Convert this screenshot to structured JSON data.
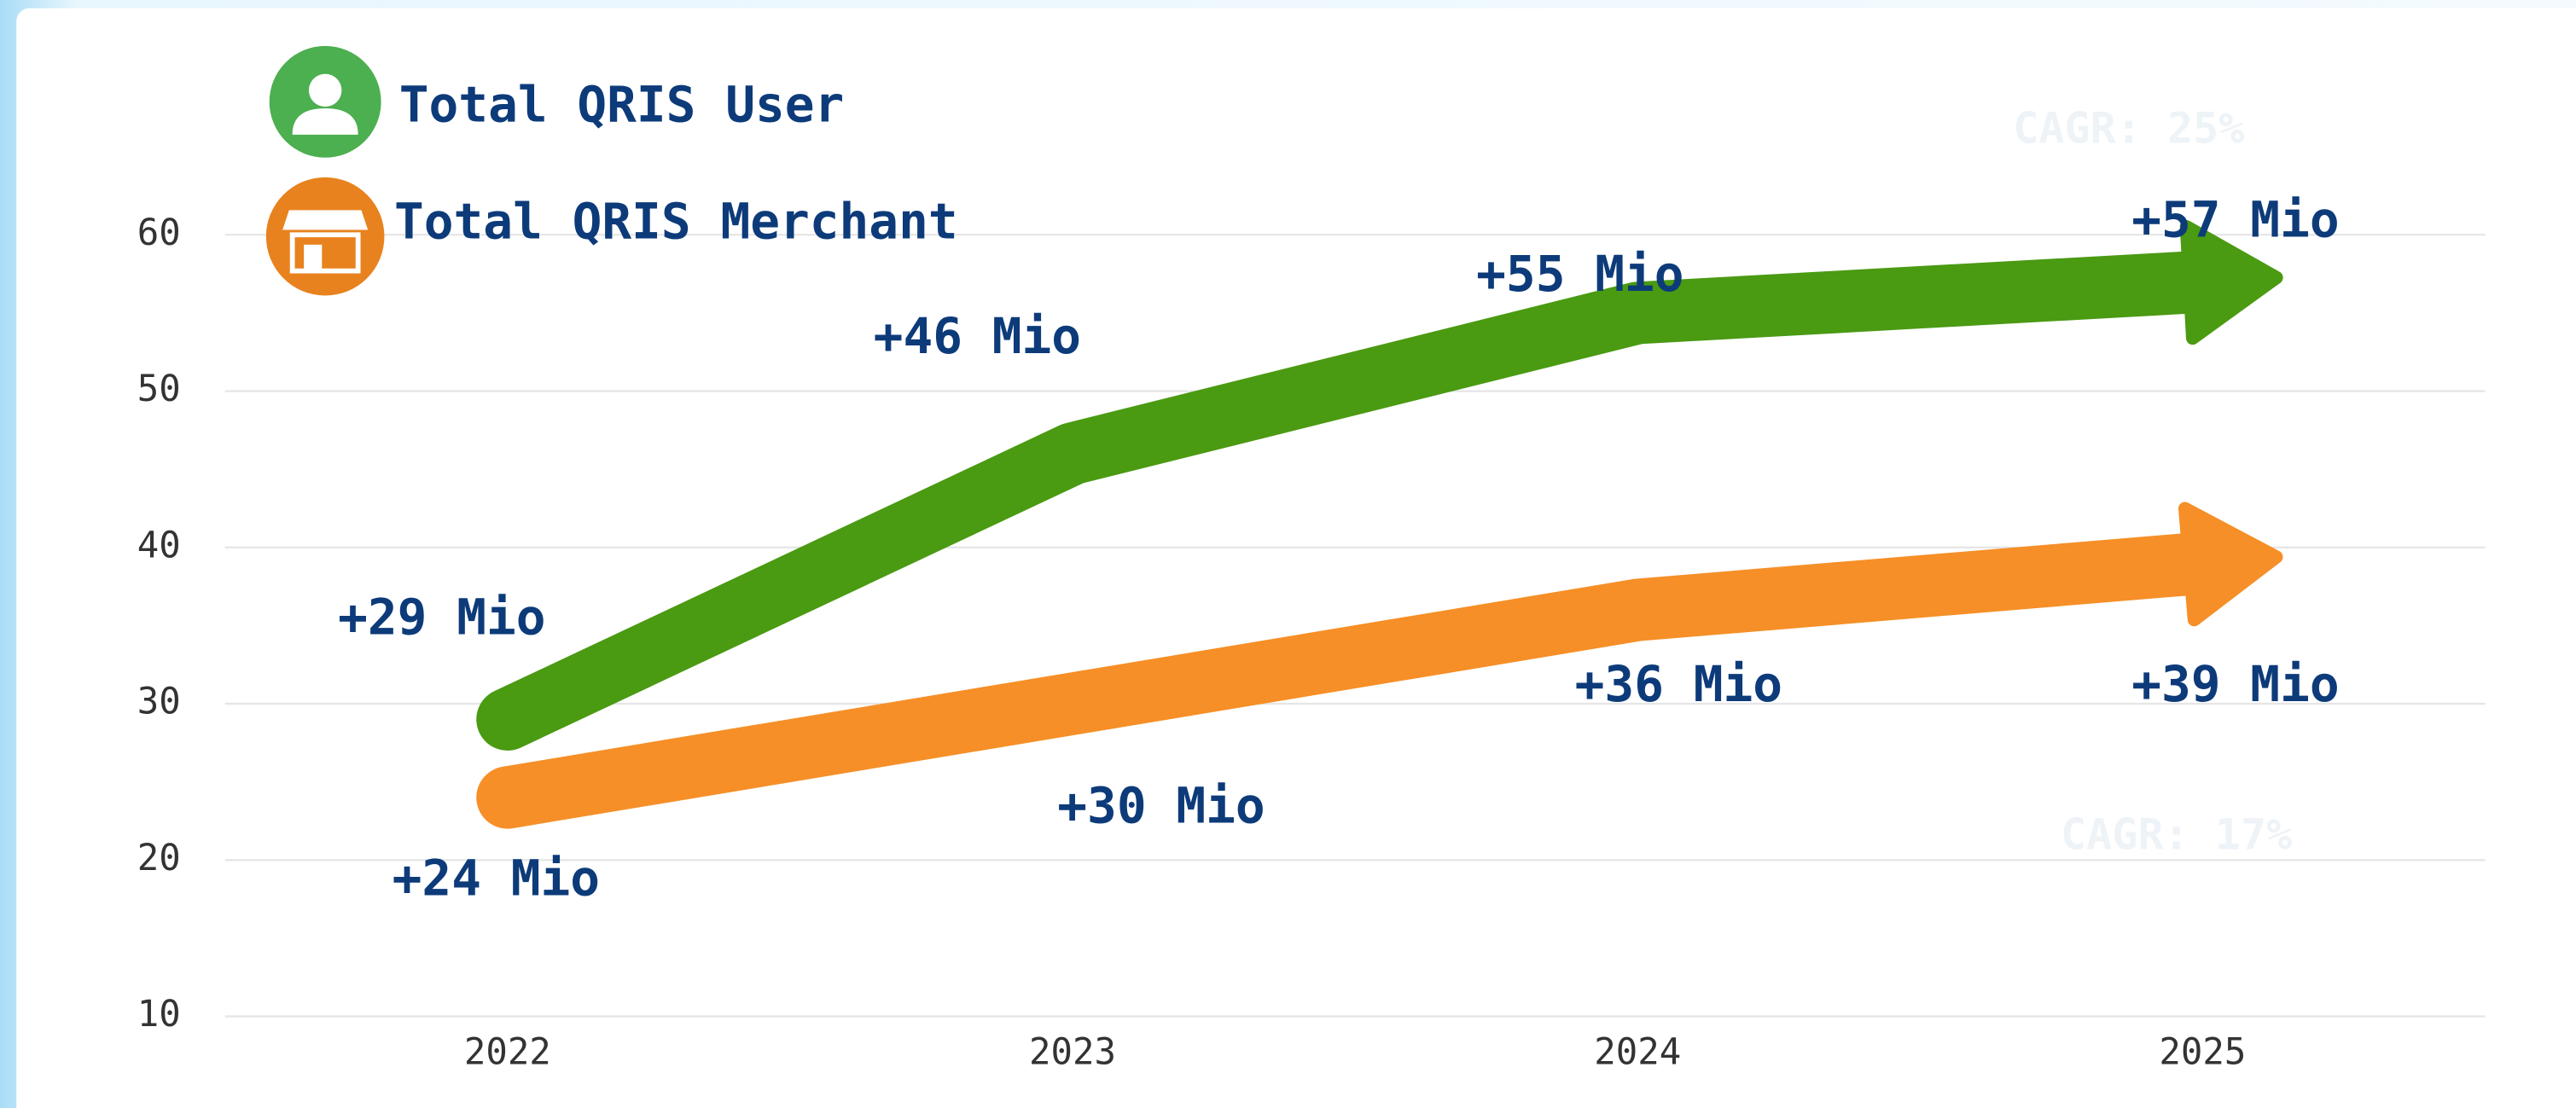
{
  "chart_data": {
    "type": "line",
    "categories": [
      "2022",
      "2023",
      "2024",
      "2025"
    ],
    "series": [
      {
        "name": "Total QRIS User",
        "color": "#4a9a12",
        "values": [
          29,
          46,
          55,
          57
        ],
        "value_labels": [
          "+29 Mio",
          "+46 Mio",
          "+55 Mio",
          "+57 Mio"
        ]
      },
      {
        "name": "Total QRIS Merchant",
        "color": "#f68f27",
        "values": [
          24,
          30,
          36,
          39
        ],
        "value_labels": [
          "+24 Mio",
          "+30 Mio",
          "+36 Mio",
          "+39 Mio"
        ]
      }
    ],
    "annotations": [
      "CAGR: 25%",
      "CAGR: 17%"
    ],
    "ylim": [
      10,
      65
    ],
    "yticks": [
      10,
      20,
      30,
      40,
      50,
      60
    ],
    "grid": true
  }
}
